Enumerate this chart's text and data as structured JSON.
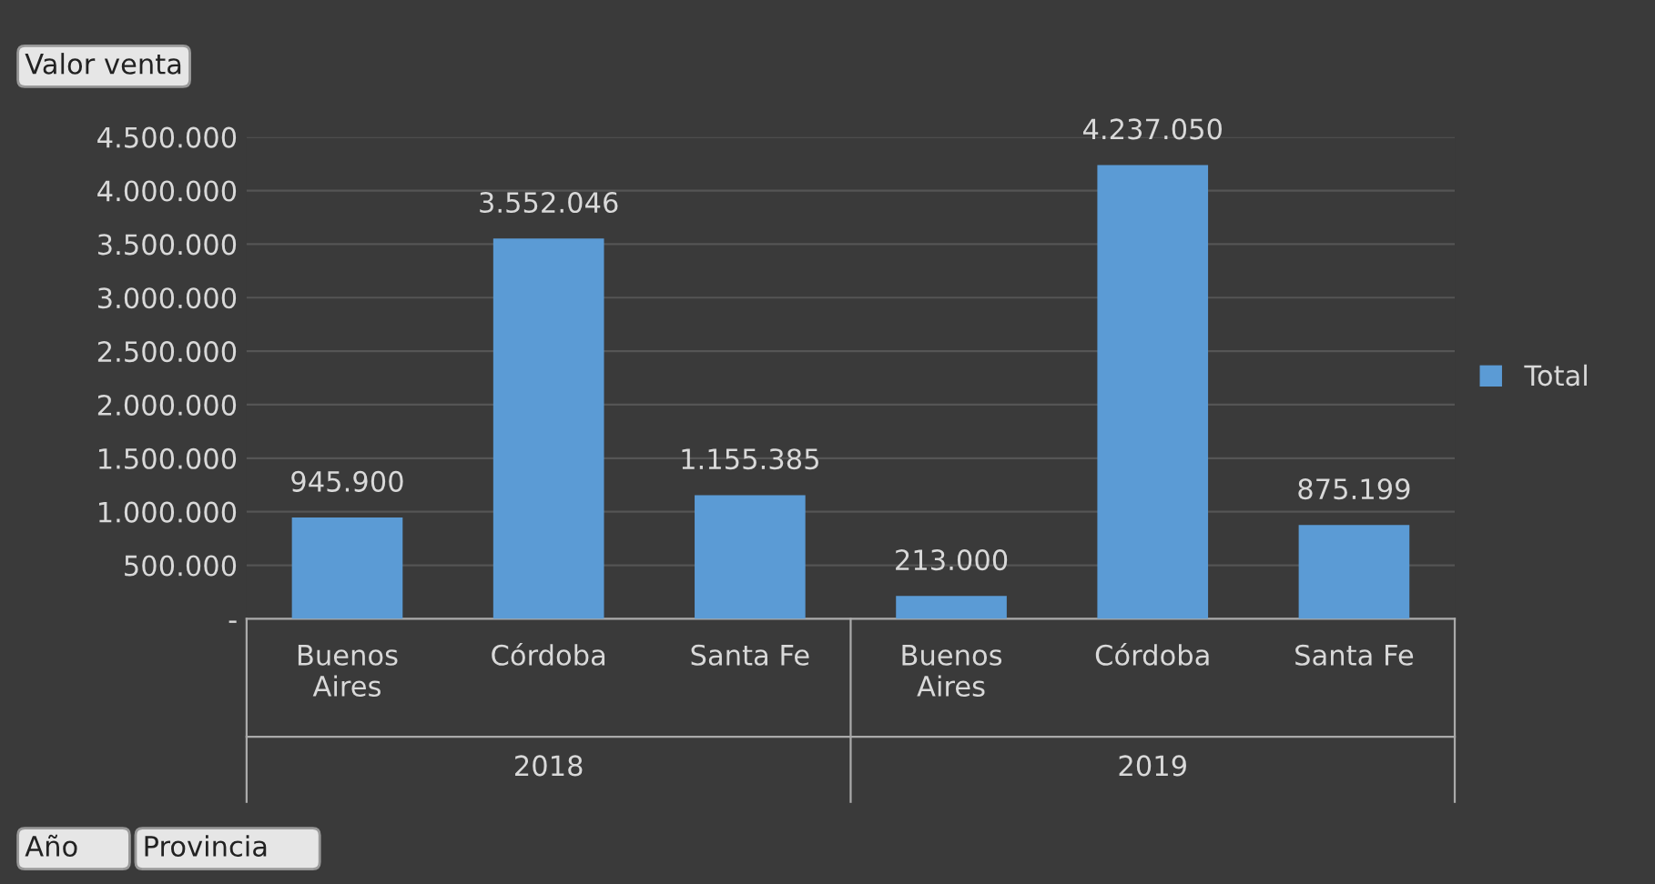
{
  "chart_data": {
    "type": "bar",
    "categories": [
      "Buenos Aires",
      "Córdoba",
      "Santa Fe",
      "Buenos Aires",
      "Córdoba",
      "Santa Fe"
    ],
    "series": [
      {
        "name": "Total",
        "color": "#5b9bd5",
        "values": [
          945900,
          3552046,
          1155385,
          213000,
          4237050,
          875199
        ],
        "value_labels": [
          "945.900",
          "3.552.046",
          "1.155.385",
          "213.000",
          "4.237.050",
          "875.199"
        ]
      }
    ],
    "ylim": [
      0,
      4500000
    ],
    "yticks": [
      {
        "value": 0,
        "label": "-"
      },
      {
        "value": 500000,
        "label": "500.000"
      },
      {
        "value": 1000000,
        "label": "1.000.000"
      },
      {
        "value": 1500000,
        "label": "1.500.000"
      },
      {
        "value": 2000000,
        "label": "2.000.000"
      },
      {
        "value": 2500000,
        "label": "2.500.000"
      },
      {
        "value": 3000000,
        "label": "3.000.000"
      },
      {
        "value": 3500000,
        "label": "3.500.000"
      },
      {
        "value": 4000000,
        "label": "4.000.000"
      },
      {
        "value": 4500000,
        "label": "4.500.000"
      }
    ],
    "grid": "y",
    "legend": "right",
    "annotations": [
      "Valor venta",
      "Año",
      "Provincia",
      "2018",
      "2019"
    ]
  }
}
